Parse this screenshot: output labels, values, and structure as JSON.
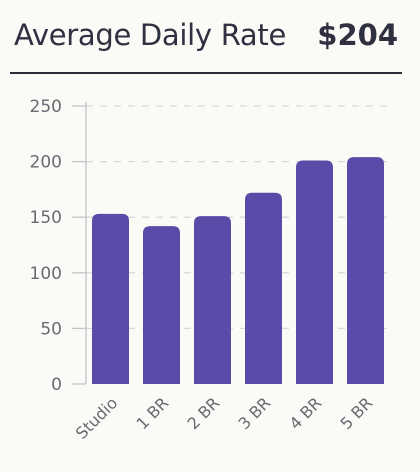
{
  "header": {
    "title": "Average Daily Rate",
    "value": "$204"
  },
  "chart_data": {
    "type": "bar",
    "categories": [
      "Studio",
      "1 BR",
      "2 BR",
      "3 BR",
      "4 BR",
      "5 BR"
    ],
    "values": [
      153,
      142,
      151,
      172,
      201,
      204
    ],
    "yticks": [
      0,
      50,
      100,
      150,
      200,
      250
    ],
    "ylim": [
      0,
      250
    ],
    "grid": true,
    "colors": {
      "bar": "#5b4aa8",
      "grid": "#d9d9dc",
      "axis": "#c4c4c8"
    }
  }
}
